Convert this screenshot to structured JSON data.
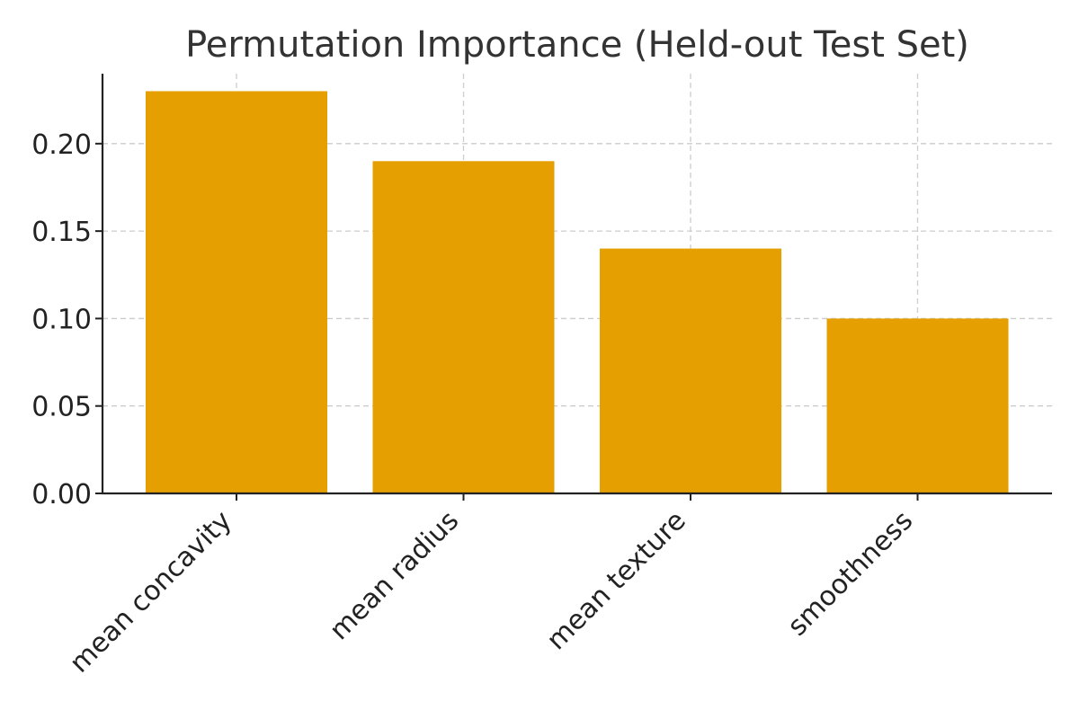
{
  "chart_data": {
    "type": "bar",
    "title": "Permutation Importance (Held-out Test Set)",
    "xlabel": "",
    "ylabel": "",
    "categories": [
      "mean concavity",
      "mean radius",
      "mean texture",
      "smoothness"
    ],
    "values": [
      0.23,
      0.19,
      0.14,
      0.1
    ],
    "ylim": [
      0,
      0.24
    ],
    "yticks": [
      0.0,
      0.05,
      0.1,
      0.15,
      0.2
    ],
    "ytick_labels": [
      "0.00",
      "0.05",
      "0.10",
      "0.15",
      "0.20"
    ],
    "grid": true,
    "bar_color": "#E69F00",
    "legend": "none"
  }
}
